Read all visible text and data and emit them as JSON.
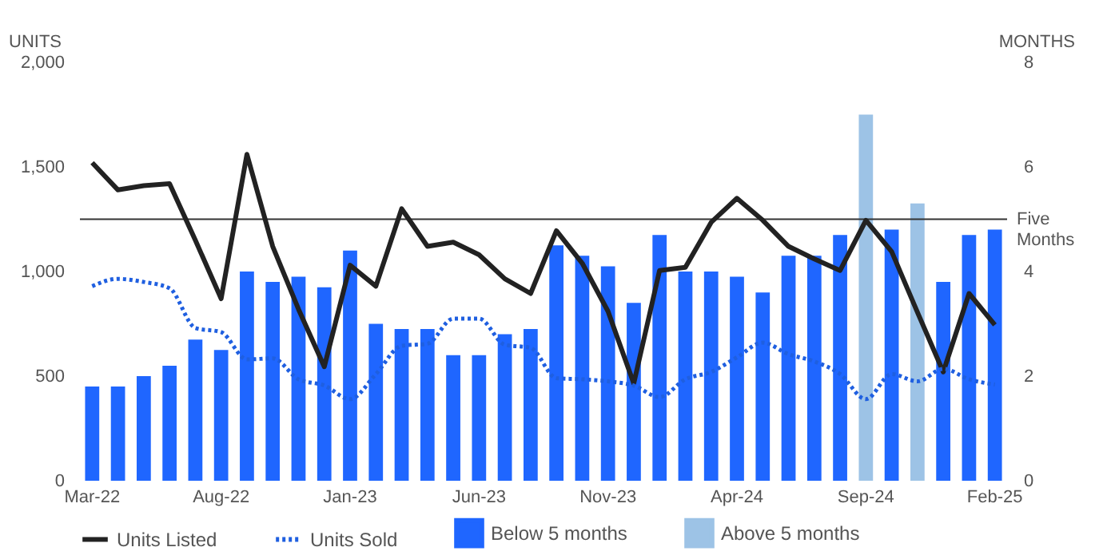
{
  "chart_data": {
    "type": "bar",
    "categories": [
      "Mar-22",
      null,
      null,
      null,
      null,
      "Aug-22",
      null,
      null,
      null,
      null,
      "Jan-23",
      null,
      null,
      null,
      null,
      "Jun-23",
      null,
      null,
      null,
      null,
      "Nov-23",
      null,
      null,
      null,
      null,
      "Apr-24",
      null,
      null,
      null,
      null,
      "Sep-24",
      null,
      null,
      null,
      null,
      "Feb-25"
    ],
    "ylabel": "UNITS",
    "y2label": "MONTHS",
    "ylim": [
      0,
      2000
    ],
    "yticks": [
      0,
      500,
      {
        "value": 1000,
        "label": "1,000"
      },
      {
        "value": 1500,
        "label": "1,500"
      },
      {
        "value": 2000,
        "label": "2,000"
      }
    ],
    "y2lim": [
      0,
      8
    ],
    "y2ticks": [
      0,
      2,
      4,
      6,
      8
    ],
    "series": [
      {
        "name": "Units Listed",
        "type": "line",
        "line_style": "solid",
        "color": "#222222",
        "values": [
          1520,
          1390,
          1410,
          1420,
          1150,
          870,
          1560,
          1120,
          820,
          545,
          1030,
          930,
          1300,
          1120,
          1140,
          1080,
          965,
          895,
          1195,
          1040,
          810,
          465,
          1005,
          1020,
          1235,
          1350,
          1245,
          1120,
          1060,
          1005,
          1245,
          1095,
          805,
          520,
          895,
          745
        ]
      },
      {
        "name": "Units Sold",
        "type": "line",
        "line_style": "dotted",
        "color": "#1f5fe0",
        "values": [
          930,
          965,
          950,
          920,
          730,
          710,
          580,
          585,
          485,
          455,
          390,
          510,
          645,
          655,
          775,
          775,
          650,
          635,
          490,
          485,
          475,
          455,
          400,
          485,
          520,
          590,
          660,
          605,
          570,
          510,
          390,
          510,
          475,
          535,
          485,
          460
        ]
      },
      {
        "name": "Below 5 months",
        "axis": "y2",
        "color": "#1f66ff",
        "values": [
          1.8,
          1.8,
          2.0,
          2.2,
          2.7,
          2.5,
          4.0,
          3.8,
          3.9,
          3.7,
          4.4,
          3.0,
          2.9,
          2.9,
          2.4,
          2.4,
          2.8,
          2.9,
          4.5,
          4.3,
          4.1,
          3.4,
          4.7,
          4.0,
          4.0,
          3.9,
          3.6,
          4.3,
          4.3,
          4.7,
          null,
          4.8,
          null,
          3.8,
          4.7,
          4.8
        ]
      },
      {
        "name": "Above 5 months",
        "axis": "y2",
        "color": "#9dc3e6",
        "values": [
          null,
          null,
          null,
          null,
          null,
          null,
          null,
          null,
          null,
          null,
          null,
          null,
          null,
          null,
          null,
          null,
          null,
          null,
          null,
          null,
          null,
          null,
          null,
          null,
          null,
          null,
          null,
          null,
          null,
          null,
          7.0,
          null,
          5.3,
          null,
          null,
          null
        ]
      }
    ],
    "ref_lines": [
      {
        "axis": "y2",
        "value": 5,
        "label": "Five Months",
        "color": "#333333"
      }
    ],
    "legend": "bottom"
  }
}
